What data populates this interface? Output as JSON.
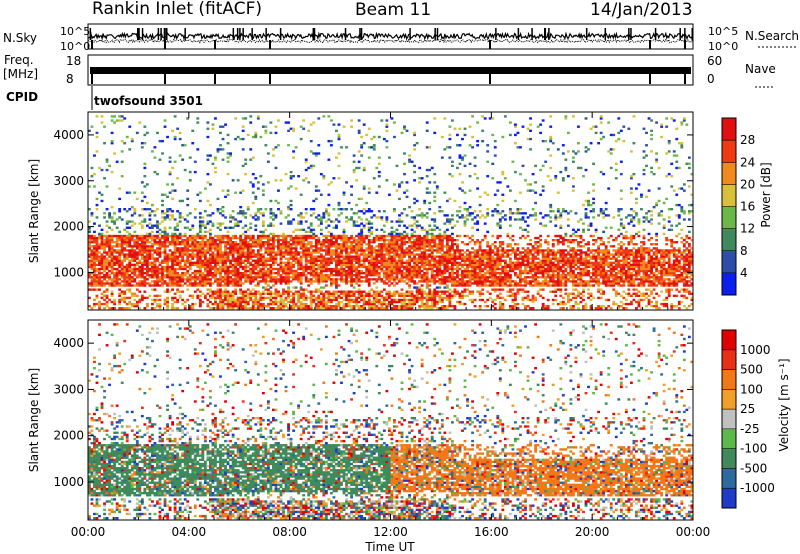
{
  "header": {
    "station": "Rankin Inlet (fitACF)",
    "beam": "Beam 11",
    "date": "14/Jan/2013"
  },
  "strip_labels": {
    "nsky": "N.Sky",
    "nsearch": "N.Search",
    "freq": "Freq.",
    "freq_unit": "[MHz]",
    "nave": "Nave",
    "cpid": "CPID",
    "cpid_value": "twofsound 3501",
    "nsky_ticks": [
      "10^5",
      "10^0"
    ],
    "nsearch_ticks": [
      "10^5",
      "10^0"
    ],
    "freq_ticks": [
      "18",
      "8"
    ],
    "nave_ticks": [
      "60",
      "0"
    ]
  },
  "chart_data": [
    {
      "type": "heatmap",
      "name": "power",
      "ylabel": "Slant Range [km]",
      "ylim": [
        180,
        4500
      ],
      "yticks": [
        1000,
        2000,
        3000,
        4000
      ],
      "colorbar": {
        "label": "Power [dB]",
        "ticks": [
          "4",
          "8",
          "12",
          "16",
          "20",
          "24",
          "28"
        ],
        "colors": [
          "#0a1ef0",
          "#2b4fa8",
          "#3f8a5c",
          "#6ab84a",
          "#d8c03a",
          "#f08a1e",
          "#f03a14",
          "#e01010"
        ]
      },
      "bands": [
        {
          "range": [
            300,
            1800
          ],
          "level": "high"
        },
        {
          "range": [
            200,
            600
          ],
          "level": "high"
        },
        {
          "range": [
            1800,
            4300
          ],
          "level": "sparse"
        }
      ]
    },
    {
      "type": "heatmap",
      "name": "velocity",
      "ylabel": "Slant Range [km]",
      "ylim": [
        180,
        4500
      ],
      "yticks": [
        1000,
        2000,
        3000,
        4000
      ],
      "colorbar": {
        "label": "Velocity [m s⁻¹]",
        "ticks": [
          "1000",
          "500",
          "100",
          "25",
          "-25",
          "-100",
          "-500",
          "-1000"
        ],
        "colors": [
          "#1e3cc8",
          "#2d6aa0",
          "#3f8a5c",
          "#5cb84a",
          "#c0c0c0",
          "#f0a028",
          "#f07818",
          "#e83018",
          "#e00000"
        ]
      }
    }
  ],
  "xaxis": {
    "label": "Time UT",
    "ticks": [
      "00:00",
      "04:00",
      "08:00",
      "12:00",
      "16:00",
      "20:00",
      "00:00"
    ]
  }
}
